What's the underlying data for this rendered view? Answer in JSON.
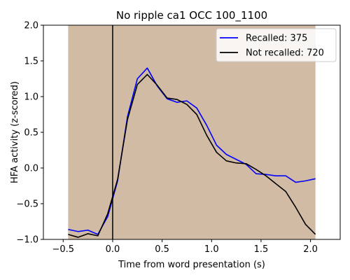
{
  "chart_data": {
    "type": "line",
    "title": "No ripple ca1 OCC 100_1100",
    "xlabel": "Time from word presentation (s)",
    "ylabel": "HFA activity (z-scored)",
    "xlim": [
      -0.7,
      2.3
    ],
    "ylim": [
      -1.0,
      2.0
    ],
    "xticks": [
      -0.5,
      0.0,
      0.5,
      1.0,
      1.5,
      2.0
    ],
    "xtick_labels": [
      "−0.5",
      "0.0",
      "0.5",
      "1.0",
      "1.5",
      "2.0"
    ],
    "yticks": [
      -1.0,
      -0.5,
      0.0,
      0.5,
      1.0,
      1.5,
      2.0
    ],
    "ytick_labels": [
      "−1.0",
      "−0.5",
      "0.0",
      "0.5",
      "1.0",
      "1.5",
      "2.0"
    ],
    "grid": false,
    "legend_position": "top-right",
    "shaded_region": {
      "x": [
        -0.45,
        2.05
      ],
      "color": "#d2bba5"
    },
    "vertical_line": {
      "x": 0.0,
      "color": "#000000"
    },
    "x": [
      -0.45,
      -0.35,
      -0.25,
      -0.15,
      -0.05,
      0.05,
      0.15,
      0.25,
      0.35,
      0.45,
      0.55,
      0.65,
      0.75,
      0.85,
      0.95,
      1.05,
      1.15,
      1.25,
      1.35,
      1.45,
      1.55,
      1.65,
      1.75,
      1.85,
      1.95,
      2.05
    ],
    "series": [
      {
        "name": "Recalled: 375",
        "color": "#0000ff",
        "values": [
          -0.86,
          -0.89,
          -0.87,
          -0.93,
          -0.68,
          -0.18,
          0.72,
          1.25,
          1.4,
          1.15,
          0.97,
          0.92,
          0.94,
          0.84,
          0.6,
          0.32,
          0.19,
          0.12,
          0.05,
          -0.08,
          -0.09,
          -0.11,
          -0.11,
          -0.2,
          -0.18,
          -0.15
        ]
      },
      {
        "name": "Not recalled: 720",
        "color": "#000000",
        "values": [
          -0.93,
          -0.97,
          -0.92,
          -0.95,
          -0.64,
          -0.16,
          0.68,
          1.17,
          1.31,
          1.16,
          0.98,
          0.96,
          0.89,
          0.75,
          0.46,
          0.22,
          0.1,
          0.07,
          0.06,
          -0.02,
          -0.11,
          -0.22,
          -0.33,
          -0.55,
          -0.79,
          -0.93
        ]
      }
    ]
  }
}
